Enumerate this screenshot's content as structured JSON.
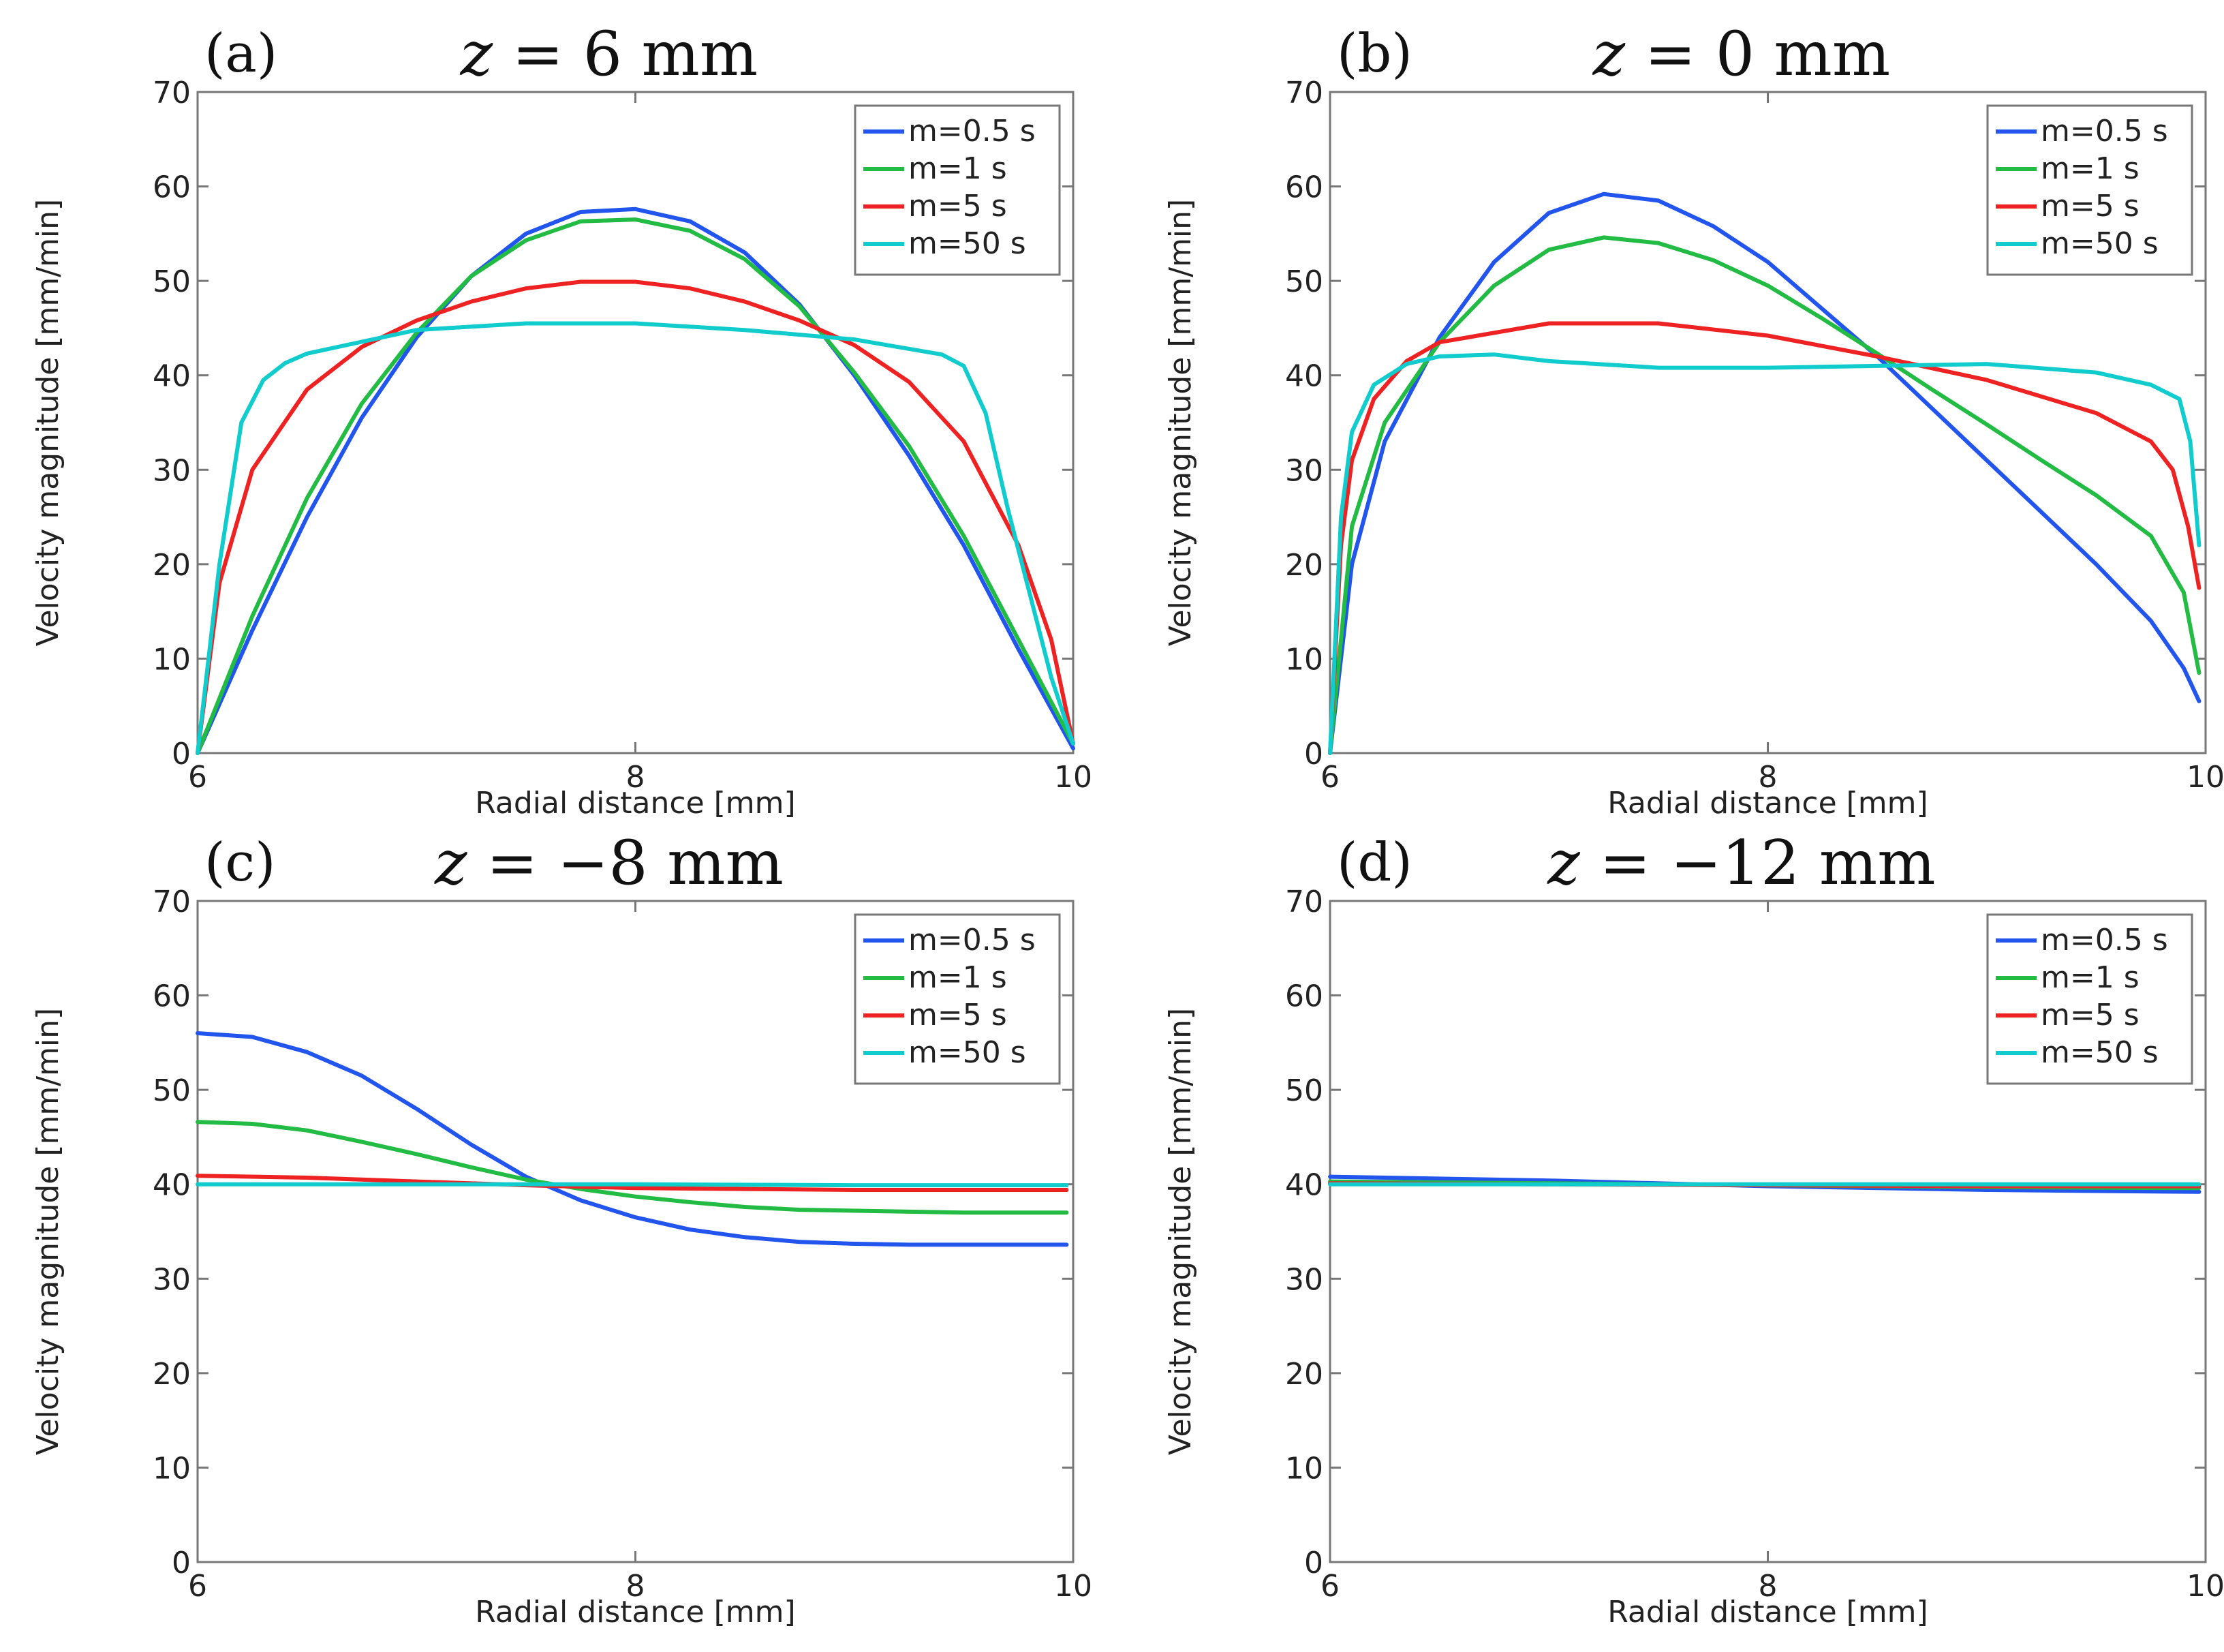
{
  "chart_data": [
    {
      "type": "line",
      "panel_label": "(a)",
      "title_var": "z",
      "title_rest": " = 6  mm",
      "xlabel": "Radial distance [mm]",
      "ylabel": "Velocity magnitude [mm/min]",
      "xlim": [
        6,
        10
      ],
      "ylim": [
        0,
        70
      ],
      "xticks": [
        6,
        8,
        10
      ],
      "yticks": [
        0,
        10,
        20,
        30,
        40,
        50,
        60,
        70
      ],
      "grid": false,
      "legend_position": "top-right",
      "series": [
        {
          "name": "m=0.5 s",
          "color": "#2255ee",
          "x": [
            6,
            6.25,
            6.5,
            6.75,
            7,
            7.25,
            7.5,
            7.75,
            8,
            8.25,
            8.5,
            8.75,
            9,
            9.25,
            9.5,
            9.75,
            10
          ],
          "y": [
            0,
            13,
            25,
            35.5,
            44,
            50.5,
            55,
            57.3,
            57.6,
            56.3,
            53,
            47.5,
            40,
            31.5,
            22,
            11,
            0.5
          ]
        },
        {
          "name": "m=1 s",
          "color": "#22bb44",
          "x": [
            6,
            6.25,
            6.5,
            6.75,
            7,
            7.25,
            7.5,
            7.75,
            8,
            8.25,
            8.5,
            8.75,
            9,
            9.25,
            9.5,
            9.75,
            10
          ],
          "y": [
            0,
            14.5,
            27,
            37,
            44.5,
            50.5,
            54.3,
            56.3,
            56.5,
            55.3,
            52.3,
            47.3,
            40.3,
            32.5,
            23,
            12,
            1
          ]
        },
        {
          "name": "m=5 s",
          "color": "#ee2222",
          "x": [
            6,
            6.1,
            6.25,
            6.5,
            6.75,
            7,
            7.25,
            7.5,
            7.75,
            8,
            8.25,
            8.5,
            8.75,
            9,
            9.25,
            9.5,
            9.75,
            9.9,
            10
          ],
          "y": [
            0,
            18,
            30,
            38.5,
            43,
            45.8,
            47.8,
            49.2,
            49.9,
            49.9,
            49.2,
            47.8,
            45.8,
            43.2,
            39.3,
            33,
            22,
            12,
            1
          ]
        },
        {
          "name": "m=50 s",
          "color": "#11cccc",
          "x": [
            6,
            6.1,
            6.2,
            6.3,
            6.4,
            6.5,
            7,
            7.5,
            8,
            8.5,
            9,
            9.4,
            9.5,
            9.6,
            9.7,
            9.8,
            9.9,
            10
          ],
          "y": [
            0,
            20,
            35,
            39.5,
            41.3,
            42.3,
            44.8,
            45.5,
            45.5,
            44.8,
            43.8,
            42.2,
            41,
            36,
            26,
            17,
            8,
            1
          ]
        }
      ]
    },
    {
      "type": "line",
      "panel_label": "(b)",
      "title_var": "z",
      "title_rest": " = 0 mm",
      "xlabel": "Radial distance [mm]",
      "ylabel": "Velocity magnitude [mm/min]",
      "xlim": [
        6,
        10
      ],
      "ylim": [
        0,
        70
      ],
      "xticks": [
        6,
        8,
        10
      ],
      "yticks": [
        0,
        10,
        20,
        30,
        40,
        50,
        60,
        70
      ],
      "grid": false,
      "legend_position": "top-right",
      "series": [
        {
          "name": "m=0.5 s",
          "color": "#2255ee",
          "x": [
            6,
            6.1,
            6.25,
            6.5,
            6.75,
            7,
            7.25,
            7.5,
            7.75,
            8,
            8.25,
            8.5,
            8.75,
            9,
            9.25,
            9.5,
            9.75,
            9.9,
            9.97
          ],
          "y": [
            0,
            20,
            33,
            44,
            52,
            57.2,
            59.2,
            58.5,
            55.8,
            52,
            47,
            42,
            36.5,
            31,
            25.5,
            20,
            14,
            9,
            5.5
          ]
        },
        {
          "name": "m=1 s",
          "color": "#22bb44",
          "x": [
            6,
            6.1,
            6.25,
            6.5,
            6.75,
            7,
            7.25,
            7.5,
            7.75,
            8,
            8.25,
            8.5,
            8.75,
            9,
            9.25,
            9.5,
            9.75,
            9.9,
            9.97
          ],
          "y": [
            0,
            24,
            35,
            43.5,
            49.5,
            53.3,
            54.6,
            54,
            52.2,
            49.5,
            46,
            42.3,
            38.5,
            34.8,
            31,
            27.3,
            23,
            17,
            8.5
          ]
        },
        {
          "name": "m=5 s",
          "color": "#ee2222",
          "x": [
            6,
            6.05,
            6.1,
            6.2,
            6.35,
            6.5,
            7,
            7.5,
            8,
            8.5,
            9,
            9.5,
            9.75,
            9.85,
            9.92,
            9.97
          ],
          "y": [
            0,
            22,
            31,
            37.5,
            41.5,
            43.5,
            45.5,
            45.5,
            44.2,
            42,
            39.5,
            36,
            33,
            30,
            24,
            17.5
          ]
        },
        {
          "name": "m=50 s",
          "color": "#11cccc",
          "x": [
            6,
            6.05,
            6.1,
            6.2,
            6.35,
            6.5,
            6.75,
            7,
            7.5,
            8,
            8.5,
            9,
            9.5,
            9.75,
            9.88,
            9.93,
            9.97
          ],
          "y": [
            0,
            25,
            34,
            39,
            41.2,
            42,
            42.2,
            41.5,
            40.8,
            40.8,
            41,
            41.2,
            40.3,
            39,
            37.5,
            33,
            22
          ]
        }
      ]
    },
    {
      "type": "line",
      "panel_label": "(c)",
      "title_var": "z",
      "title_rest": " = −8  mm",
      "xlabel": "Radial distance [mm]",
      "ylabel": "Velocity magnitude [mm/min]",
      "xlim": [
        6,
        10
      ],
      "ylim": [
        0,
        70
      ],
      "xticks": [
        6,
        8,
        10
      ],
      "yticks": [
        0,
        10,
        20,
        30,
        40,
        50,
        60,
        70
      ],
      "grid": false,
      "legend_position": "top-right",
      "series": [
        {
          "name": "m=0.5 s",
          "color": "#2255ee",
          "x": [
            6,
            6.25,
            6.5,
            6.75,
            7,
            7.25,
            7.5,
            7.75,
            8,
            8.25,
            8.5,
            8.75,
            9,
            9.25,
            9.5,
            9.75,
            9.97
          ],
          "y": [
            56,
            55.6,
            54,
            51.5,
            48,
            44.2,
            40.8,
            38.3,
            36.5,
            35.2,
            34.4,
            33.9,
            33.7,
            33.6,
            33.6,
            33.6,
            33.6
          ]
        },
        {
          "name": "m=1 s",
          "color": "#22bb44",
          "x": [
            6,
            6.25,
            6.5,
            6.75,
            7,
            7.25,
            7.5,
            7.75,
            8,
            8.25,
            8.5,
            8.75,
            9,
            9.25,
            9.5,
            9.75,
            9.97
          ],
          "y": [
            46.6,
            46.4,
            45.7,
            44.5,
            43.2,
            41.8,
            40.5,
            39.5,
            38.7,
            38.1,
            37.6,
            37.3,
            37.2,
            37.1,
            37,
            37,
            37
          ]
        },
        {
          "name": "m=5 s",
          "color": "#ee2222",
          "x": [
            6,
            6.5,
            7,
            7.5,
            8,
            8.5,
            9,
            9.5,
            9.97
          ],
          "y": [
            40.9,
            40.7,
            40.3,
            39.9,
            39.6,
            39.5,
            39.4,
            39.4,
            39.4
          ]
        },
        {
          "name": "m=50 s",
          "color": "#11cccc",
          "x": [
            6,
            7,
            8,
            9,
            9.97
          ],
          "y": [
            40,
            40,
            40,
            39.9,
            39.9
          ]
        }
      ]
    },
    {
      "type": "line",
      "panel_label": "(d)",
      "title_var": "z",
      "title_rest": " = −12 mm",
      "xlabel": "Radial distance [mm]",
      "ylabel": "Velocity magnitude [mm/min]",
      "xlim": [
        6,
        10
      ],
      "ylim": [
        0,
        70
      ],
      "xticks": [
        6,
        8,
        10
      ],
      "yticks": [
        0,
        10,
        20,
        30,
        40,
        50,
        60,
        70
      ],
      "grid": false,
      "legend_position": "top-right",
      "series": [
        {
          "name": "m=0.5 s",
          "color": "#2255ee",
          "x": [
            6,
            7,
            8,
            9,
            9.97
          ],
          "y": [
            40.8,
            40.4,
            39.8,
            39.4,
            39.2
          ]
        },
        {
          "name": "m=1 s",
          "color": "#22bb44",
          "x": [
            6,
            7,
            8,
            9,
            9.97
          ],
          "y": [
            40.3,
            40.1,
            39.9,
            39.7,
            39.6
          ]
        },
        {
          "name": "m=5 s",
          "color": "#ee2222",
          "x": [
            6,
            7,
            8,
            9,
            9.97
          ],
          "y": [
            40.1,
            40,
            39.9,
            39.8,
            39.8
          ]
        },
        {
          "name": "m=50 s",
          "color": "#11cccc",
          "x": [
            6,
            7,
            8,
            9,
            9.97
          ],
          "y": [
            40,
            40,
            40,
            40,
            40
          ]
        }
      ]
    }
  ]
}
